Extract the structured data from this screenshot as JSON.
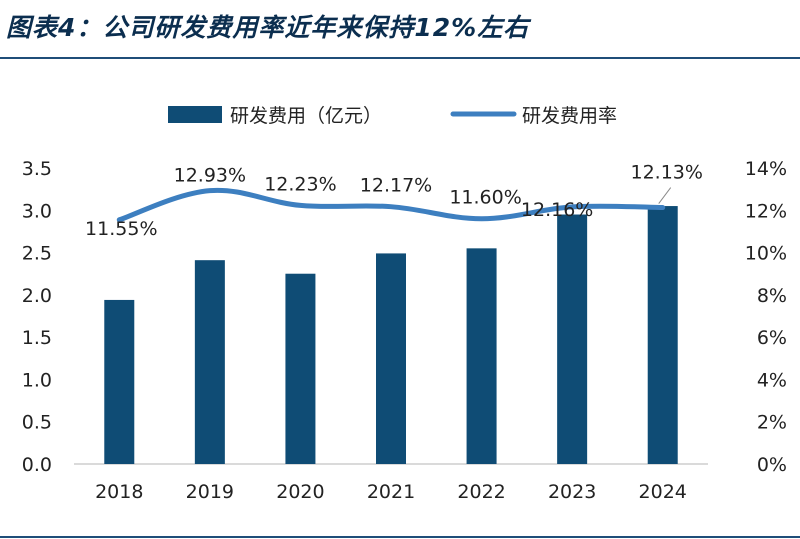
{
  "page": {
    "title": "图表4：公司研发费用率近年来保持12%左右"
  },
  "colors": {
    "bar": "#0f4c75",
    "line": "#3d7fc0",
    "rule": "#1f4e79"
  },
  "chart_data": {
    "type": "bar+line",
    "categories": [
      "2018",
      "2019",
      "2020",
      "2021",
      "2022",
      "2023",
      "2024"
    ],
    "series": [
      {
        "name": "研发费用（亿元）",
        "type": "bar",
        "axis": "left",
        "values": [
          1.94,
          2.41,
          2.25,
          2.49,
          2.55,
          2.95,
          3.05
        ]
      },
      {
        "name": "研发费用率",
        "type": "line",
        "axis": "right",
        "values": [
          11.55,
          12.93,
          12.23,
          12.17,
          11.6,
          12.16,
          12.13
        ],
        "labels": [
          "11.55%",
          "12.93%",
          "12.23%",
          "12.17%",
          "11.60%",
          "12.16%",
          "12.13%"
        ]
      }
    ],
    "y_left": {
      "min": 0,
      "max": 3.5,
      "ticks": [
        "0.0",
        "0.5",
        "1.0",
        "1.5",
        "2.0",
        "2.5",
        "3.0",
        "3.5"
      ]
    },
    "y_right": {
      "min": 0,
      "max": 14,
      "ticks": [
        "0%",
        "2%",
        "4%",
        "6%",
        "8%",
        "10%",
        "12%",
        "14%"
      ]
    },
    "legend": {
      "position": "top"
    },
    "grid": false
  }
}
